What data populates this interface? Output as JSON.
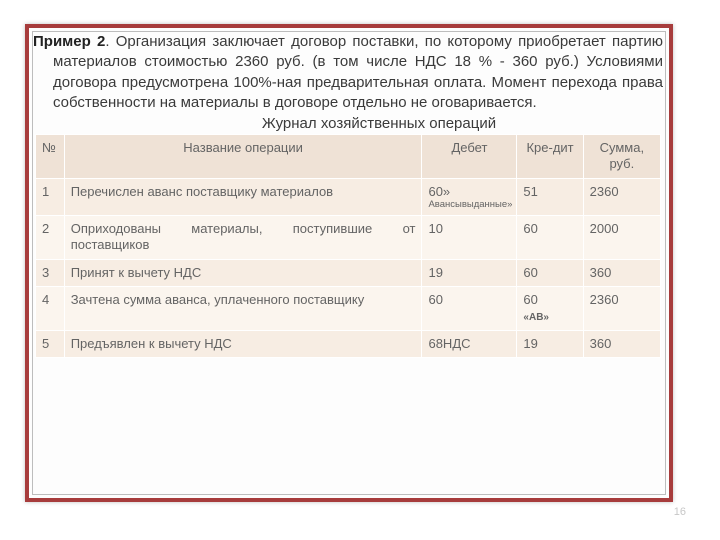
{
  "example_label": "Пример 2",
  "paragraph_rest": ". Организация заключает договор поставки, по которому приобретает партию материалов стоимостью 2360 руб. (в том числе НДС 18 % - 360 руб.) Условиями договора предусмотрена 100%-ная предварительная оплата. Момент перехода права собственности на материалы в договоре отдельно не оговаривается.",
  "subtitle": "Журнал хозяйственных операций",
  "headers": {
    "num": "№",
    "name": "Название операции",
    "debit": "Дебет",
    "credit": "Кре-дит",
    "sum": "Сумма, руб."
  },
  "rows": [
    {
      "n": "1",
      "name": "Перечислен аванс поставщику материалов",
      "debit": "60»",
      "debit_sub": "Авансывыданные»",
      "credit": "51",
      "sum": "2360",
      "justify": true
    },
    {
      "n": "2",
      "name": "Оприходованы материалы, поступившие от поставщиков",
      "debit": "10",
      "credit": "60",
      "sum": "2000",
      "justify": true
    },
    {
      "n": "3",
      "name": "Принят к вычету НДС",
      "debit": "19",
      "credit": "60",
      "sum": "360",
      "justify": false
    },
    {
      "n": "4",
      "name": "Зачтена сумма аванса, уплаченного поставщику",
      "debit": "60",
      "credit": "60",
      "credit_sub": "«АВ»",
      "sum": "2360",
      "justify": true
    },
    {
      "n": "5",
      "name": "Предъявлен к вычету НДС",
      "debit": "68НДС",
      "credit": "19",
      "sum": "360",
      "justify": false
    }
  ],
  "page_number": "16"
}
